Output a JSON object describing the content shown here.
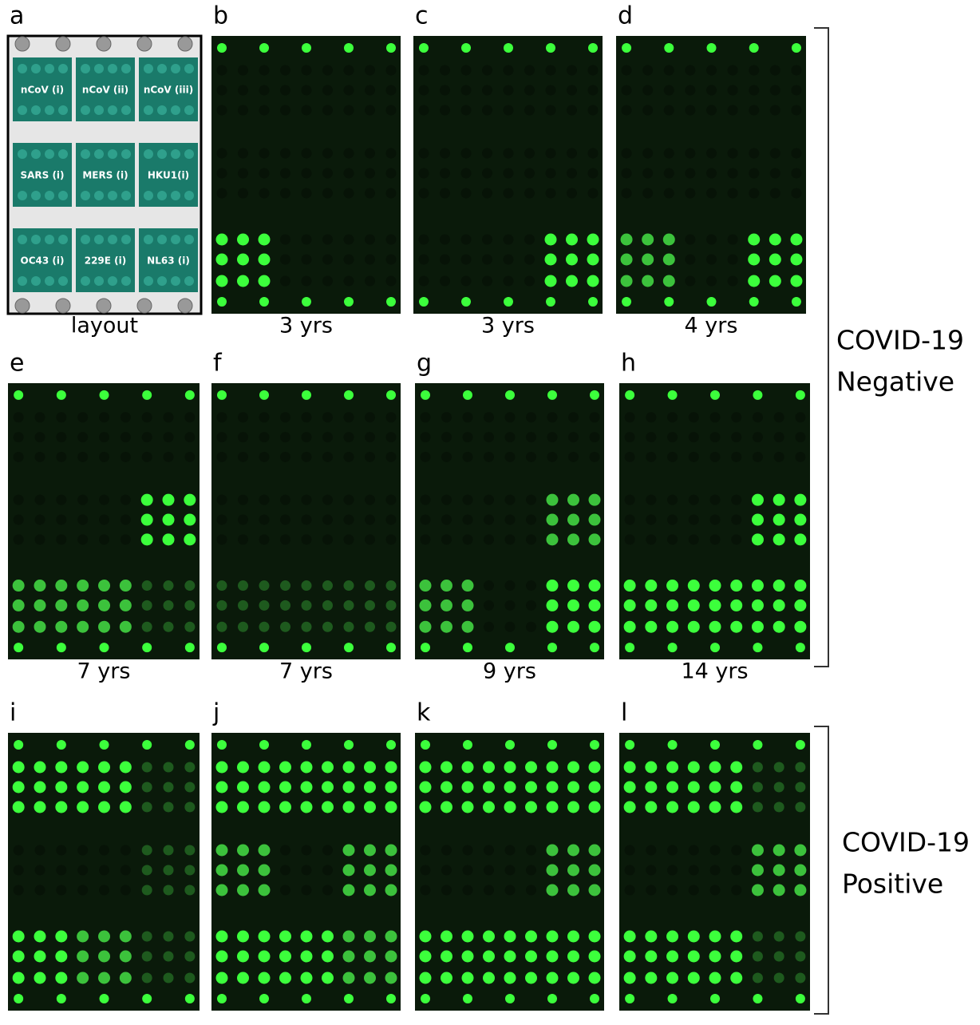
{
  "panels": [
    {
      "letter": "a",
      "caption": "layout"
    },
    {
      "letter": "b",
      "caption": "3 yrs"
    },
    {
      "letter": "c",
      "caption": "3 yrs"
    },
    {
      "letter": "d",
      "caption": "4 yrs"
    },
    {
      "letter": "e",
      "caption": "7 yrs"
    },
    {
      "letter": "f",
      "caption": "7 yrs"
    },
    {
      "letter": "g",
      "caption": "9 yrs"
    },
    {
      "letter": "h",
      "caption": "14 yrs"
    },
    {
      "letter": "i"
    },
    {
      "letter": "j"
    },
    {
      "letter": "k"
    },
    {
      "letter": "l"
    }
  ],
  "layout_tiles": [
    "nCoV (i)",
    "nCoV (ii)",
    "nCoV (iii)",
    "SARS (i)",
    "MERS (i)",
    "HKU1(i)",
    "OC43 (i)",
    "229E (i)",
    "NL63 (i)"
  ],
  "groups": [
    {
      "lines": [
        "COVID-19",
        "Negative"
      ]
    },
    {
      "lines": [
        "COVID-19",
        "Positive"
      ]
    }
  ]
}
